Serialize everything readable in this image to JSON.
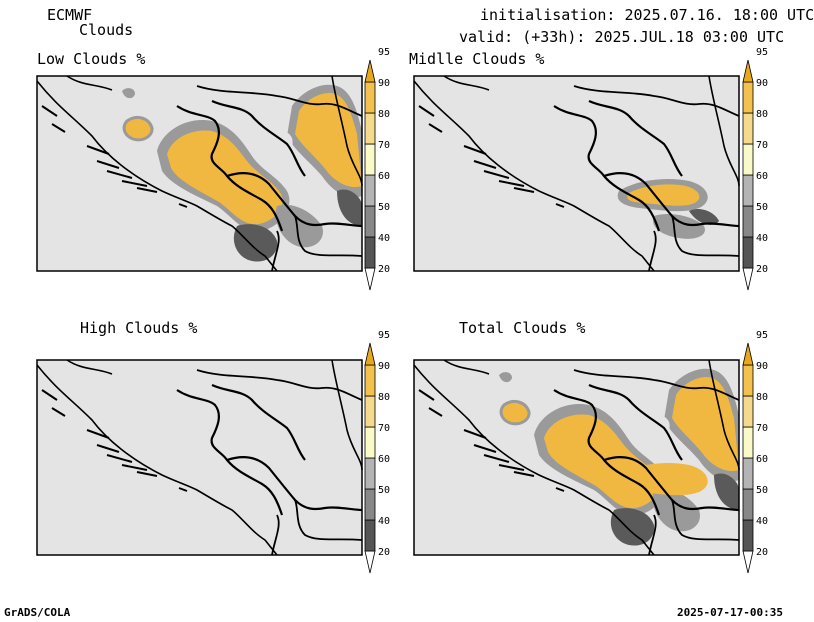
{
  "header": {
    "model": "ECMWF",
    "product": "Clouds",
    "init": "initialisation: 2025.07.16. 18:00 UTC",
    "valid": "valid: (+33h): 2025.JUL.18 03:00 UTC"
  },
  "panels": [
    {
      "id": "low",
      "title": "Low Clouds %"
    },
    {
      "id": "middle",
      "title": "Midlle Clouds %"
    },
    {
      "id": "high",
      "title": "High Clouds %"
    },
    {
      "id": "total",
      "title": "Total Clouds %"
    }
  ],
  "colorbar": {
    "labels": [
      "20",
      "40",
      "50",
      "60",
      "70",
      "80",
      "90",
      "95"
    ],
    "colors": [
      "#ffffff",
      "#555555",
      "#888888",
      "#b4b4b4",
      "#fafac8",
      "#f5d98c",
      "#f2c14e",
      "#e8a81e"
    ]
  },
  "colors": {
    "background_fill": "#e4e4e4",
    "orange": "#f0b840",
    "light": "#f6f0d8",
    "dark_grey": "#5a5a5a",
    "mid_grey": "#9a9a9a"
  },
  "footer": {
    "left": "GrADS/COLA",
    "right": "2025-07-17-00:35"
  }
}
